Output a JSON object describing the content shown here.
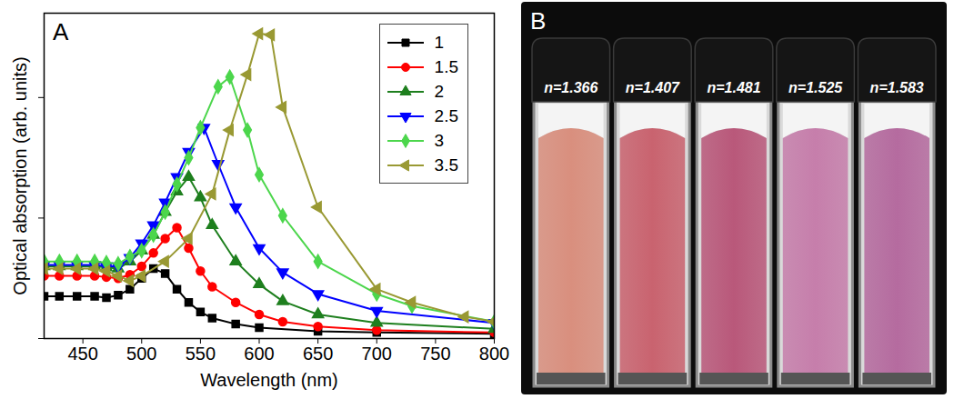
{
  "chart_data": {
    "type": "line",
    "annotations": [
      "A"
    ],
    "x_label": "Wavelength (nm)",
    "y_label": "Optical absorption (arb. units)",
    "xlim": [
      417,
      800
    ],
    "xticks": [
      450,
      500,
      550,
      600,
      650,
      700,
      750,
      800
    ],
    "ylim": [
      0,
      2.7
    ],
    "yticks": [
      0,
      1,
      2
    ],
    "tick_labels": "x",
    "grid": false,
    "legend": "top-right",
    "series": [
      {
        "name": "1",
        "color": "#000000",
        "marker": "square",
        "x": [
          417,
          430,
          445,
          460,
          470,
          480,
          490,
          500,
          510,
          520,
          530,
          540,
          550,
          560,
          580,
          600,
          650,
          700,
          800
        ],
        "values": [
          0.35,
          0.35,
          0.35,
          0.35,
          0.34,
          0.36,
          0.41,
          0.5,
          0.58,
          0.54,
          0.41,
          0.3,
          0.22,
          0.17,
          0.12,
          0.09,
          0.06,
          0.05,
          0.04
        ]
      },
      {
        "name": "1.5",
        "color": "#ff0000",
        "marker": "circle",
        "x": [
          417,
          430,
          445,
          460,
          470,
          480,
          490,
          500,
          510,
          520,
          530,
          540,
          550,
          560,
          580,
          600,
          620,
          650,
          700,
          800
        ],
        "values": [
          0.52,
          0.52,
          0.52,
          0.52,
          0.51,
          0.5,
          0.53,
          0.6,
          0.71,
          0.83,
          0.92,
          0.75,
          0.56,
          0.43,
          0.3,
          0.2,
          0.14,
          0.1,
          0.07,
          0.05
        ]
      },
      {
        "name": "2",
        "color": "#1e7f1e",
        "marker": "triangle-up",
        "x": [
          417,
          430,
          445,
          460,
          470,
          480,
          490,
          500,
          510,
          520,
          530,
          540,
          550,
          560,
          580,
          600,
          620,
          650,
          700,
          800
        ],
        "values": [
          0.6,
          0.6,
          0.6,
          0.6,
          0.59,
          0.58,
          0.64,
          0.73,
          0.86,
          1.05,
          1.22,
          1.34,
          1.17,
          0.94,
          0.64,
          0.45,
          0.31,
          0.2,
          0.13,
          0.08
        ]
      },
      {
        "name": "2.5",
        "color": "#0000ff",
        "marker": "triangle-down",
        "x": [
          417,
          430,
          445,
          460,
          470,
          480,
          490,
          500,
          510,
          520,
          530,
          540,
          553,
          565,
          580,
          600,
          620,
          650,
          700,
          800
        ],
        "values": [
          0.61,
          0.61,
          0.61,
          0.61,
          0.6,
          0.6,
          0.67,
          0.79,
          0.94,
          1.13,
          1.34,
          1.55,
          1.75,
          1.45,
          1.09,
          0.75,
          0.55,
          0.37,
          0.23,
          0.13
        ]
      },
      {
        "name": "3",
        "color": "#4cd64c",
        "marker": "diamond",
        "x": [
          417,
          430,
          445,
          460,
          470,
          480,
          490,
          500,
          510,
          520,
          530,
          540,
          550,
          565,
          575,
          590,
          600,
          620,
          650,
          700,
          730,
          800
        ],
        "values": [
          0.64,
          0.64,
          0.64,
          0.64,
          0.63,
          0.62,
          0.68,
          0.73,
          0.86,
          1.05,
          1.28,
          1.5,
          1.75,
          2.09,
          2.17,
          1.73,
          1.36,
          1.02,
          0.64,
          0.37,
          0.27,
          0.14
        ]
      },
      {
        "name": "3.5",
        "color": "#999933",
        "marker": "triangle-left",
        "x": [
          417,
          430,
          445,
          460,
          470,
          480,
          490,
          500,
          520,
          540,
          560,
          575,
          590,
          600,
          610,
          620,
          650,
          700,
          730,
          775,
          800
        ],
        "values": [
          0.58,
          0.58,
          0.58,
          0.58,
          0.56,
          0.52,
          0.48,
          0.52,
          0.64,
          0.83,
          1.2,
          1.73,
          2.19,
          2.53,
          2.52,
          1.92,
          1.09,
          0.41,
          0.3,
          0.18,
          0.14
        ]
      }
    ]
  },
  "photo": {
    "label": "B",
    "cuvettes": [
      {
        "label": "n=1.366",
        "color": "#d98f7e"
      },
      {
        "label": "n=1.407",
        "color": "#c9636f"
      },
      {
        "label": "n=1.481",
        "color": "#b9587a"
      },
      {
        "label": "n=1.525",
        "color": "#c67eab"
      },
      {
        "label": "n=1.583",
        "color": "#b56b9f"
      }
    ]
  }
}
